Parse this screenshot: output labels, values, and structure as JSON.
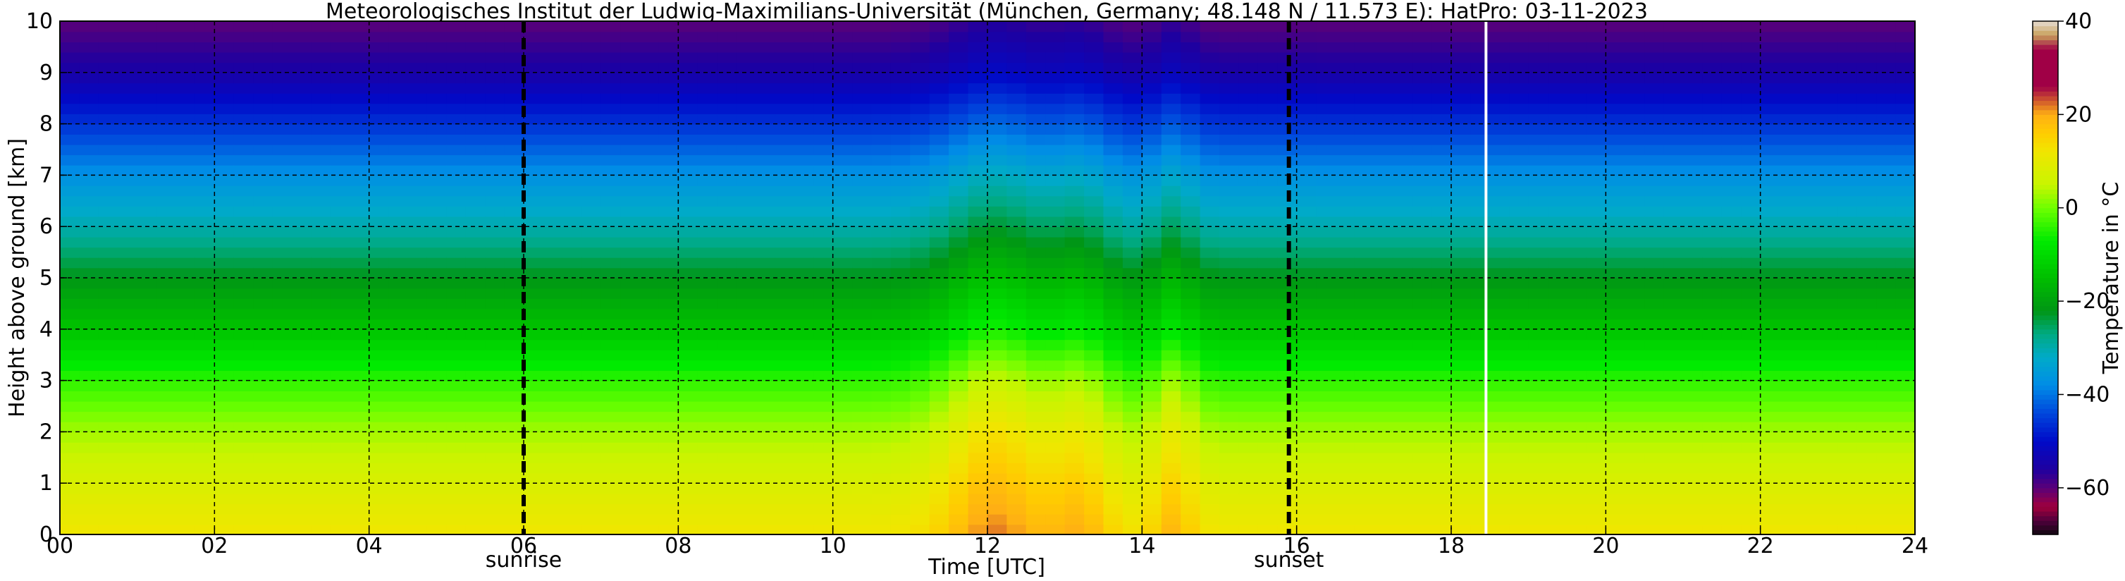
{
  "chart_data": {
    "type": "heatmap",
    "title": "Meteorologisches Institut der Ludwig-Maximilians-Universität (München, Germany; 48.148 N / 11.573 E):    HatPro: 03-11-2023",
    "xlabel": "Time [UTC]",
    "ylabel": "Height above ground [km]",
    "xlim": [
      0,
      24
    ],
    "ylim": [
      0,
      10
    ],
    "x_ticks": [
      "00",
      "02",
      "04",
      "06",
      "08",
      "10",
      "12",
      "14",
      "16",
      "18",
      "20",
      "22",
      "24"
    ],
    "x_tick_values": [
      0,
      2,
      4,
      6,
      8,
      10,
      12,
      14,
      16,
      18,
      20,
      22,
      24
    ],
    "y_ticks": [
      "0",
      "1",
      "2",
      "3",
      "4",
      "5",
      "6",
      "7",
      "8",
      "9",
      "10"
    ],
    "y_tick_values": [
      0,
      1,
      2,
      3,
      4,
      5,
      6,
      7,
      8,
      9,
      10
    ],
    "grid": true,
    "colorbar": {
      "label": "Temperature in $^\\circ$C",
      "range": [
        -70,
        40
      ],
      "ticks": [
        "−60",
        "−40",
        "−20",
        "0",
        "20",
        "40"
      ],
      "tick_values": [
        -60,
        -40,
        -20,
        0,
        20,
        40
      ]
    },
    "markers": [
      {
        "name": "sunrise",
        "time": 6.0
      },
      {
        "name": "sunset",
        "time": 15.9
      }
    ],
    "data_gap_time": 18.45,
    "heights_km": [
      0,
      1,
      2,
      3,
      4,
      5,
      6,
      7,
      8,
      9,
      10
    ],
    "background_temperature_profile_c": [
      12,
      8,
      3,
      -4,
      -14,
      -22,
      -30,
      -37,
      -46,
      -55,
      -60
    ],
    "warm_events": [
      {
        "center_time": 12.1,
        "width_h": 0.7,
        "delta_c": 10
      },
      {
        "center_time": 13.2,
        "width_h": 0.45,
        "delta_c": 7
      },
      {
        "center_time": 14.4,
        "width_h": 0.3,
        "delta_c": 7
      }
    ]
  }
}
